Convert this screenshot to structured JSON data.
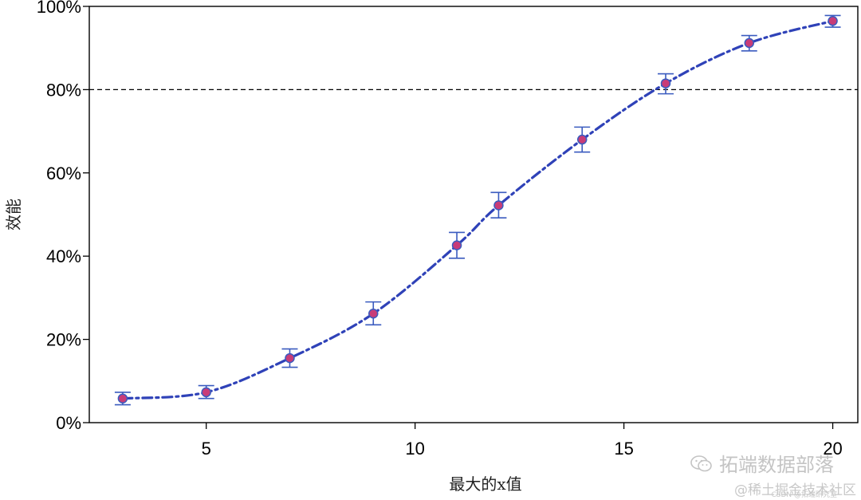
{
  "chart_data": {
    "type": "line",
    "title": "",
    "xlabel": "最大的x值",
    "ylabel": "效能",
    "xlim": [
      2.2,
      20.6
    ],
    "ylim": [
      0,
      100
    ],
    "x_ticks": [
      5,
      10,
      15,
      20
    ],
    "x_tick_labels": [
      "5",
      "10",
      "15",
      "20"
    ],
    "y_ticks": [
      0,
      20,
      40,
      60,
      80,
      100
    ],
    "y_tick_labels": [
      "0%",
      "20%",
      "40%",
      "60%",
      "80%",
      "100%"
    ],
    "reference_line": {
      "y": 80,
      "style": "dashed",
      "color": "#000000"
    },
    "grid": false,
    "series": [
      {
        "x": [
          3,
          5,
          7,
          9,
          11,
          12,
          14,
          16,
          18,
          20
        ],
        "y": [
          5.8,
          7.3,
          15.5,
          26.2,
          42.6,
          52.2,
          68.0,
          81.5,
          91.2,
          96.5
        ],
        "err_low": [
          4.3,
          5.8,
          13.3,
          23.5,
          39.5,
          49.2,
          65.0,
          79.0,
          89.3,
          95.0
        ],
        "err_high": [
          7.3,
          8.9,
          17.7,
          29.0,
          45.7,
          55.3,
          71.0,
          83.8,
          93.0,
          97.8
        ]
      }
    ],
    "colors": {
      "line": "#2f42b8",
      "marker_fill": "#c83c78",
      "marker_edge": "#3a5bbf",
      "error_bar": "#3a5bbf"
    }
  },
  "watermark": {
    "line1": "拓端数据部落",
    "line2": "@稀土掘金技术社区",
    "line3": "CSDN @拓端研究室",
    "icon": "wechat-icon"
  }
}
